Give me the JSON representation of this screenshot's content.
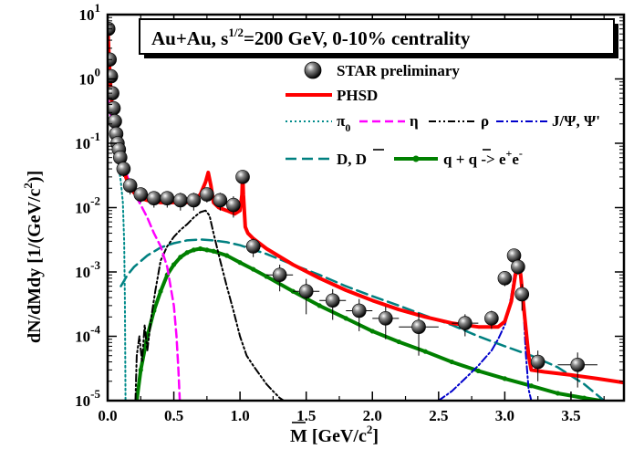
{
  "chart_data": {
    "type": "line",
    "title": "Au+Au,  s¹ᐟ²=200 GeV, 0-10% centrality",
    "title_parts": {
      "pre": "Au+Au,  s",
      "sup": "1/2",
      "post": "=200 GeV, 0-10% centrality"
    },
    "xlabel": "M  [GeV/c²]",
    "xlabel_parts": {
      "main": "M  [GeV/c",
      "sup": "2",
      "end": "]"
    },
    "ylabel": "dN/dMdy  [1/(GeV/c²)]",
    "ylabel_parts": {
      "main": "dN/dMdy  [1/(GeV/c",
      "sup": "2",
      "end": ")]"
    },
    "xlim": [
      0.0,
      3.9
    ],
    "ylim": [
      1e-05,
      10
    ],
    "yscale": "log",
    "xticks": [
      "0.0",
      "0.5",
      "1.0",
      "1.5",
      "2.0",
      "2.5",
      "3.0",
      "3.5"
    ],
    "xtick_values": [
      0.0,
      0.5,
      1.0,
      1.5,
      2.0,
      2.5,
      3.0,
      3.5
    ],
    "yticks": [
      {
        "base": "10",
        "exp": "-5",
        "value": 1e-05
      },
      {
        "base": "10",
        "exp": "-4",
        "value": 0.0001
      },
      {
        "base": "10",
        "exp": "-3",
        "value": 0.001
      },
      {
        "base": "10",
        "exp": "-2",
        "value": 0.01
      },
      {
        "base": "10",
        "exp": "-1",
        "value": 0.1
      },
      {
        "base": "10",
        "exp": "0",
        "value": 1
      },
      {
        "base": "10",
        "exp": "1",
        "value": 10
      }
    ],
    "legend_position": "top-right",
    "legend": {
      "star": "STAR preliminary",
      "phsd": "PHSD",
      "pi0": "π",
      "pi0_sub": "0",
      "eta": "η",
      "rho": "ρ",
      "jpsi": "J/Ψ, Ψ'",
      "dd": "D,  D",
      "qq_pre": "q +  q -> e",
      "qq_sup1": "+",
      "qq_mid": "e",
      "qq_sup2": "-"
    },
    "colors": {
      "phsd": "#ff0000",
      "pi0": "#008b8b",
      "eta": "#ff00ff",
      "rho": "#000000",
      "jpsi": "#0000cc",
      "dd": "#008080",
      "qq": "#008000",
      "star": "#000000"
    },
    "series": [
      {
        "name": "STAR preliminary",
        "kind": "points",
        "x": [
          0.005,
          0.015,
          0.025,
          0.035,
          0.045,
          0.055,
          0.065,
          0.075,
          0.085,
          0.095,
          0.12,
          0.17,
          0.25,
          0.35,
          0.45,
          0.55,
          0.65,
          0.75,
          0.85,
          0.95,
          1.02,
          1.1,
          1.3,
          1.5,
          1.7,
          1.9,
          2.1,
          2.35,
          2.7,
          2.9,
          3.0,
          3.07,
          3.1,
          3.13,
          3.25,
          3.55
        ],
        "y": [
          6,
          2,
          1.1,
          0.6,
          0.35,
          0.22,
          0.14,
          0.1,
          0.08,
          0.06,
          0.04,
          0.022,
          0.016,
          0.014,
          0.014,
          0.013,
          0.013,
          0.016,
          0.013,
          0.011,
          0.03,
          0.0025,
          0.0009,
          0.0005,
          0.00036,
          0.00025,
          0.00019,
          0.00014,
          0.00016,
          0.00019,
          0.0008,
          0.0018,
          0.0012,
          0.00045,
          4e-05,
          3.6e-05
        ],
        "yerr_lo": [
          0,
          0,
          0,
          0,
          0,
          0,
          0,
          0,
          0,
          0,
          0.01,
          0.006,
          0.004,
          0.004,
          0.004,
          0.004,
          0.004,
          0.004,
          0.004,
          0.004,
          0.006,
          0.0008,
          0.0004,
          0.00028,
          0.00018,
          0.00013,
          0.0001,
          9e-05,
          6e-05,
          6e-05,
          0.0002,
          0.0004,
          0.0003,
          0.0002,
          2e-05,
          2e-05
        ],
        "yerr_hi": [
          0,
          0,
          0,
          0,
          0,
          0,
          0,
          0,
          0,
          0,
          0.01,
          0.006,
          0.004,
          0.004,
          0.004,
          0.004,
          0.004,
          0.004,
          0.004,
          0.004,
          0.006,
          0.0008,
          0.0004,
          0.00028,
          0.00018,
          0.00013,
          0.0001,
          9e-05,
          6e-05,
          6e-05,
          0.0002,
          0.0004,
          0.0003,
          0.0002,
          2e-05,
          2e-05
        ],
        "xerr": [
          0,
          0,
          0,
          0,
          0,
          0,
          0,
          0,
          0,
          0,
          0.02,
          0.02,
          0.05,
          0.05,
          0.05,
          0.05,
          0.05,
          0.05,
          0.05,
          0.05,
          0.02,
          0.06,
          0.1,
          0.1,
          0.1,
          0.1,
          0.1,
          0.15,
          0.1,
          0.05,
          0.02,
          0.01,
          0.01,
          0.01,
          0.05,
          0.15
        ]
      },
      {
        "name": "PHSD",
        "kind": "line",
        "style": "solid",
        "color": "#ff0000",
        "width": 4,
        "x": [
          0.0,
          0.01,
          0.02,
          0.03,
          0.05,
          0.07,
          0.09,
          0.11,
          0.13,
          0.16,
          0.2,
          0.25,
          0.3,
          0.4,
          0.5,
          0.6,
          0.65,
          0.7,
          0.74,
          0.76,
          0.78,
          0.8,
          0.84,
          0.9,
          0.96,
          1.0,
          1.015,
          1.02,
          1.025,
          1.04,
          1.06,
          1.1,
          1.2,
          1.4,
          1.6,
          1.8,
          2.0,
          2.2,
          2.4,
          2.6,
          2.8,
          2.95,
          3.0,
          3.05,
          3.08,
          3.1,
          3.12,
          3.15,
          3.18,
          3.2,
          3.3,
          3.5,
          3.7,
          3.9
        ],
        "y": [
          7,
          2.2,
          0.9,
          0.45,
          0.2,
          0.11,
          0.07,
          0.048,
          0.033,
          0.022,
          0.017,
          0.014,
          0.013,
          0.012,
          0.012,
          0.012,
          0.013,
          0.016,
          0.025,
          0.035,
          0.022,
          0.012,
          0.01,
          0.009,
          0.008,
          0.009,
          0.016,
          0.035,
          0.016,
          0.005,
          0.004,
          0.0033,
          0.0023,
          0.0013,
          0.0008,
          0.00052,
          0.00036,
          0.00026,
          0.0002,
          0.00016,
          0.00014,
          0.00014,
          0.00017,
          0.00035,
          0.0009,
          0.0016,
          0.0009,
          0.0002,
          5e-05,
          3e-05,
          2.8e-05,
          2.5e-05,
          2.2e-05,
          1.9e-05
        ]
      },
      {
        "name": "π₀",
        "kind": "line",
        "style": "dotted",
        "color": "#008b8b",
        "width": 2,
        "x": [
          0.0,
          0.01,
          0.02,
          0.04,
          0.06,
          0.08,
          0.1,
          0.115,
          0.125,
          0.13,
          0.133,
          0.135
        ],
        "y": [
          6,
          2,
          0.8,
          0.25,
          0.1,
          0.05,
          0.025,
          0.012,
          0.003,
          0.0004,
          5e-05,
          1e-05
        ]
      },
      {
        "name": "η",
        "kind": "line",
        "style": "dashed",
        "color": "#ff00ff",
        "width": 2.5,
        "x": [
          0.0,
          0.02,
          0.05,
          0.1,
          0.15,
          0.2,
          0.25,
          0.3,
          0.35,
          0.4,
          0.45,
          0.5,
          0.52,
          0.535,
          0.545
        ],
        "y": [
          0.5,
          0.3,
          0.15,
          0.06,
          0.03,
          0.017,
          0.011,
          0.007,
          0.004,
          0.0025,
          0.0012,
          0.0003,
          0.0001,
          3e-05,
          1e-05
        ]
      },
      {
        "name": "ρ",
        "kind": "line",
        "style": "dashdotdot",
        "color": "#000000",
        "width": 2,
        "x": [
          0.21,
          0.22,
          0.24,
          0.26,
          0.28,
          0.3,
          0.33,
          0.36,
          0.4,
          0.45,
          0.5,
          0.55,
          0.6,
          0.65,
          0.7,
          0.74,
          0.77,
          0.8,
          0.85,
          0.9,
          0.95,
          1.0,
          1.05,
          1.1,
          1.15,
          1.2,
          1.25,
          1.3,
          1.33
        ],
        "y": [
          1e-05,
          5e-05,
          0.0001,
          4e-05,
          0.00015,
          6e-05,
          0.0002,
          0.0005,
          0.0015,
          0.0025,
          0.0035,
          0.0045,
          0.0055,
          0.007,
          0.0085,
          0.009,
          0.0075,
          0.004,
          0.0015,
          0.0006,
          0.00025,
          0.0001,
          5e-05,
          3.5e-05,
          2.5e-05,
          1.8e-05,
          1.4e-05,
          1.1e-05,
          1e-05
        ]
      },
      {
        "name": "J/Ψ, Ψ'",
        "kind": "line",
        "style": "dashdot",
        "color": "#0000cc",
        "width": 2,
        "x": [
          2.5,
          2.6,
          2.7,
          2.8,
          2.9,
          2.95,
          3.0,
          3.03,
          3.06,
          3.08,
          3.1,
          3.12,
          3.14,
          3.16,
          3.18,
          3.2
        ],
        "y": [
          1e-05,
          1.4e-05,
          2.2e-05,
          3.5e-05,
          6e-05,
          9e-05,
          0.00015,
          0.00025,
          0.0006,
          0.0012,
          0.0016,
          0.0009,
          0.0003,
          5e-05,
          1.5e-05,
          1e-05
        ]
      },
      {
        "name": "D,  D̅",
        "kind": "line",
        "style": "longdash",
        "color": "#008080",
        "width": 2.5,
        "x": [
          0.1,
          0.15,
          0.2,
          0.3,
          0.4,
          0.5,
          0.6,
          0.7,
          0.8,
          0.9,
          1.0,
          1.2,
          1.4,
          1.6,
          1.8,
          2.0,
          2.2,
          2.4,
          2.6,
          2.8,
          3.0,
          3.2,
          3.4,
          3.6,
          3.75
        ],
        "y": [
          0.0006,
          0.0009,
          0.0012,
          0.0018,
          0.0024,
          0.0028,
          0.0031,
          0.0032,
          0.0031,
          0.0029,
          0.0026,
          0.0019,
          0.0013,
          0.0009,
          0.0006,
          0.00042,
          0.0003,
          0.00021,
          0.00015,
          0.0001,
          7e-05,
          5e-05,
          3.3e-05,
          1.8e-05,
          1e-05
        ]
      },
      {
        "name": "q +  q̅ -> e⁺e⁻",
        "kind": "line",
        "style": "solid-dots",
        "color": "#008000",
        "width": 4,
        "x": [
          0.22,
          0.25,
          0.3,
          0.35,
          0.4,
          0.45,
          0.5,
          0.55,
          0.6,
          0.65,
          0.7,
          0.75,
          0.8,
          0.9,
          1.0,
          1.1,
          1.2,
          1.4,
          1.6,
          1.8,
          2.0,
          2.2,
          2.4,
          2.6,
          2.8,
          3.0,
          3.2,
          3.4,
          3.6,
          3.72
        ],
        "y": [
          1e-05,
          3e-05,
          0.0001,
          0.00025,
          0.0005,
          0.0009,
          0.0013,
          0.0017,
          0.002,
          0.0022,
          0.0023,
          0.0022,
          0.0021,
          0.0018,
          0.0014,
          0.0011,
          0.00085,
          0.0005,
          0.0003,
          0.00019,
          0.00012,
          8.2e-05,
          5.8e-05,
          4e-05,
          2.9e-05,
          2.2e-05,
          1.7e-05,
          1.3e-05,
          1.1e-05,
          1e-05
        ]
      }
    ]
  }
}
